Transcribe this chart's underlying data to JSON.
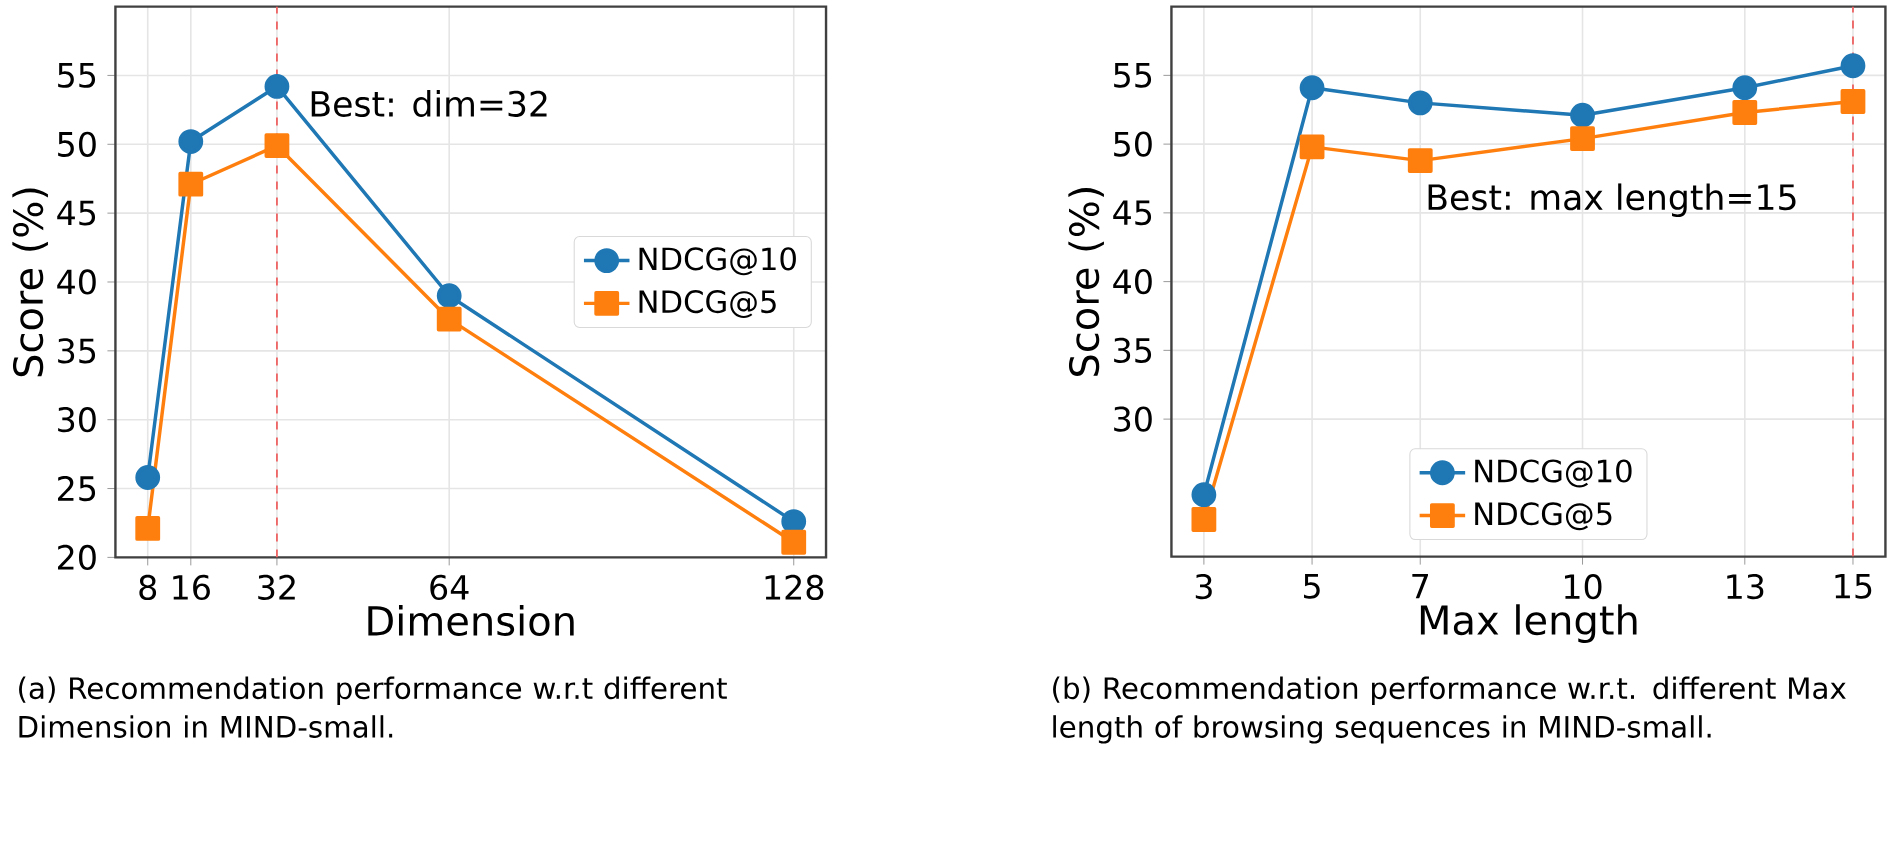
{
  "chart_data": [
    {
      "type": "line",
      "xlabel": "Dimension",
      "ylabel": "Score (%)",
      "xlim": [
        2,
        134
      ],
      "ylim": [
        20,
        60
      ],
      "xticks": [
        8,
        16,
        32,
        64,
        128
      ],
      "yticks": [
        20,
        25,
        30,
        35,
        40,
        45,
        50,
        55
      ],
      "grid": true,
      "legend": "right",
      "line_style": "solid",
      "x": [
        8,
        16,
        32,
        64,
        128
      ],
      "series": [
        {
          "name": "NDCG@10",
          "color": "#1f77b4",
          "marker": "circle",
          "values": [
            25.8,
            50.2,
            54.2,
            39.0,
            22.6
          ]
        },
        {
          "name": "NDCG@5",
          "color": "#ff7f0e",
          "marker": "square",
          "values": [
            22.1,
            47.1,
            49.9,
            37.3,
            21.1
          ]
        }
      ],
      "ref_lines": [
        {
          "axis": "x",
          "value": 32,
          "color": "#ee6666",
          "line_style": "dashed"
        }
      ],
      "annotations": [
        "Best: dim=32",
        "(a) Recommendation performance w.r.t different Dimension in MIND-small."
      ]
    },
    {
      "type": "line",
      "xlabel": "Max length",
      "ylabel": "Score (%)",
      "xlim": [
        2.4,
        15.6
      ],
      "ylim": [
        20,
        60
      ],
      "xticks": [
        3,
        5,
        7,
        10,
        13,
        15
      ],
      "yticks": [
        30,
        35,
        40,
        45,
        50,
        55
      ],
      "grid": true,
      "legend": "bottom",
      "line_style": "solid",
      "x": [
        3,
        5,
        7,
        10,
        13,
        15
      ],
      "series": [
        {
          "name": "NDCG@10",
          "color": "#1f77b4",
          "marker": "circle",
          "values": [
            24.5,
            54.1,
            53.0,
            52.1,
            54.1,
            55.7
          ]
        },
        {
          "name": "NDCG@5",
          "color": "#ff7f0e",
          "marker": "square",
          "values": [
            22.7,
            49.8,
            48.8,
            50.4,
            52.3,
            53.1
          ]
        }
      ],
      "ref_lines": [
        {
          "axis": "x",
          "value": 15,
          "color": "#ee6666",
          "line_style": "dashed"
        }
      ],
      "annotations": [
        "Best: max length=15",
        "(b) Recommendation performance w.r.t. different Max length of browsing sequences in MIND-small."
      ]
    }
  ]
}
